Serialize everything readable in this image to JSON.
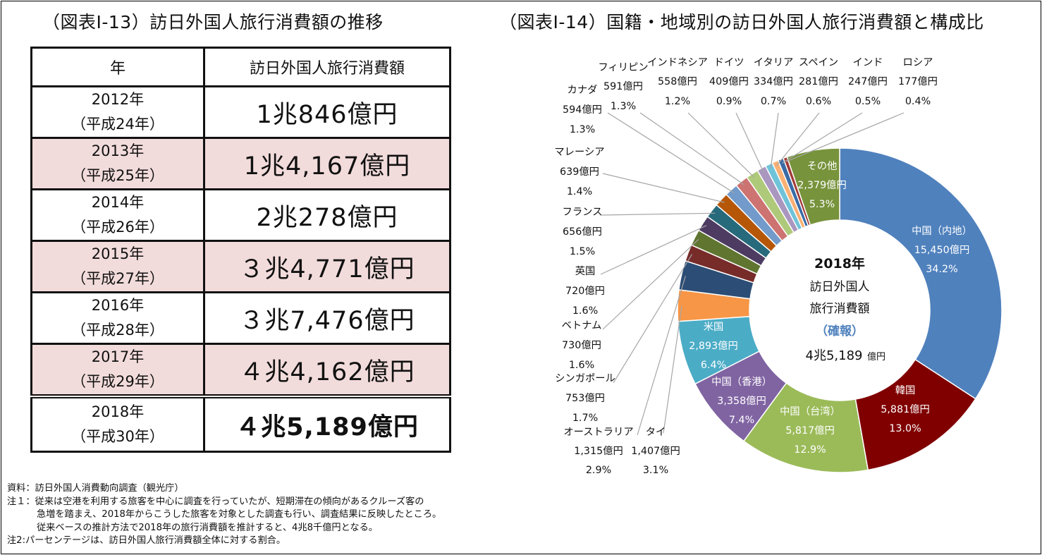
{
  "left_title": "（図表Ⅰ-13）訪日外国人旅行消費額の推移",
  "right_title": "（図表Ⅰ-14）国籍・地域別の訪日外国人旅行消費額と構成比",
  "table": {
    "headers": [
      "年",
      "訪日外国人旅行消費額"
    ],
    "rows": [
      {
        "year": "2012年",
        "era": "（平成24年）",
        "value": "1兆846億円"
      },
      {
        "year": "2013年",
        "era": "（平成25年）",
        "value": "1兆4,167億円"
      },
      {
        "year": "2014年",
        "era": "（平成26年）",
        "value": "2兆278億円"
      },
      {
        "year": "2015年",
        "era": "（平成27年）",
        "value": "３兆4,771億円"
      },
      {
        "year": "2016年",
        "era": "（平成28年）",
        "value": "３兆7,476億円"
      },
      {
        "year": "2017年",
        "era": "（平成29年）",
        "value": "４兆4,162億円"
      },
      {
        "year": "2018年",
        "era": "（平成30年）",
        "value": "４兆5,189億円"
      }
    ]
  },
  "notes": {
    "source": "資料：訪日外国人消費動向調査（観光庁）",
    "note1_line1": "注１：従来は空港を利用する旅客を中心に調査を行っていたが、短期滞在の傾向があるクルーズ客の",
    "note1_line2": "急増を踏まえ、2018年からこうした旅客を対象とした調査も行い、調査結果に反映したところ。",
    "note1_line3": "従来ベースの推計方法で2018年の旅行消費額を推計すると、4兆8千億円となる。",
    "note2": "注2:パーセンテージは、訪日外国人旅行消費額全体に対する割合。"
  },
  "center": {
    "year": "2018年",
    "line1": "訪日外国人",
    "line2": "旅行消費額",
    "status": "（確報）",
    "total": "4兆5,189",
    "unit": "億円"
  },
  "chart_data": {
    "type": "pie",
    "title": "国籍・地域別の訪日外国人旅行消費額と構成比",
    "total_label": "4兆5,189億円",
    "slices": [
      {
        "name": "中国（内地）",
        "value": 15450,
        "value_label": "15,450億円",
        "pct": "34.2%",
        "color": "#4f81bd"
      },
      {
        "name": "韓国",
        "value": 5881,
        "value_label": "5,881億円",
        "pct": "13.0%",
        "color": "#800000"
      },
      {
        "name": "中国（台湾）",
        "value": 5817,
        "value_label": "5,817億円",
        "pct": "12.9%",
        "color": "#9bbb59"
      },
      {
        "name": "中国（香港）",
        "value": 3358,
        "value_label": "3,358億円",
        "pct": "7.4%",
        "color": "#8064a2"
      },
      {
        "name": "米国",
        "value": 2893,
        "value_label": "2,893億円",
        "pct": "6.4%",
        "color": "#4bacc6"
      },
      {
        "name": "タイ",
        "value": 1407,
        "value_label": "1,407億円",
        "pct": "3.1%",
        "color": "#f79646"
      },
      {
        "name": "オーストラリア",
        "value": 1315,
        "value_label": "1,315億円",
        "pct": "2.9%",
        "color": "#2c4d75"
      },
      {
        "name": "シンガポール",
        "value": 753,
        "value_label": "753億円",
        "pct": "1.7%",
        "color": "#772c2a"
      },
      {
        "name": "ベトナム",
        "value": 730,
        "value_label": "730億円",
        "pct": "1.6%",
        "color": "#5f7530"
      },
      {
        "name": "英国",
        "value": 720,
        "value_label": "720億円",
        "pct": "1.6%",
        "color": "#4d3b62"
      },
      {
        "name": "フランス",
        "value": 656,
        "value_label": "656億円",
        "pct": "1.5%",
        "color": "#276a7c"
      },
      {
        "name": "マレーシア",
        "value": 639,
        "value_label": "639億円",
        "pct": "1.4%",
        "color": "#b65708"
      },
      {
        "name": "カナダ",
        "value": 594,
        "value_label": "594億円",
        "pct": "1.3%",
        "color": "#729aca"
      },
      {
        "name": "フィリピン",
        "value": 591,
        "value_label": "591億円",
        "pct": "1.3%",
        "color": "#cd7371"
      },
      {
        "name": "インドネシア",
        "value": 558,
        "value_label": "558億円",
        "pct": "1.2%",
        "color": "#afc97a"
      },
      {
        "name": "ドイツ",
        "value": 409,
        "value_label": "409億円",
        "pct": "0.9%",
        "color": "#a997c0"
      },
      {
        "name": "イタリア",
        "value": 334,
        "value_label": "334億円",
        "pct": "0.7%",
        "color": "#6fc3d9"
      },
      {
        "name": "スペイン",
        "value": 281,
        "value_label": "281億円",
        "pct": "0.6%",
        "color": "#fab074"
      },
      {
        "name": "インド",
        "value": 247,
        "value_label": "247億円",
        "pct": "0.5%",
        "color": "#3a6ba5"
      },
      {
        "name": "ロシア",
        "value": 177,
        "value_label": "177億円",
        "pct": "0.4%",
        "color": "#a23a36"
      },
      {
        "name": "その他",
        "value": 2379,
        "value_label": "2,379億円",
        "pct": "5.3%",
        "color": "#77933c"
      }
    ]
  }
}
